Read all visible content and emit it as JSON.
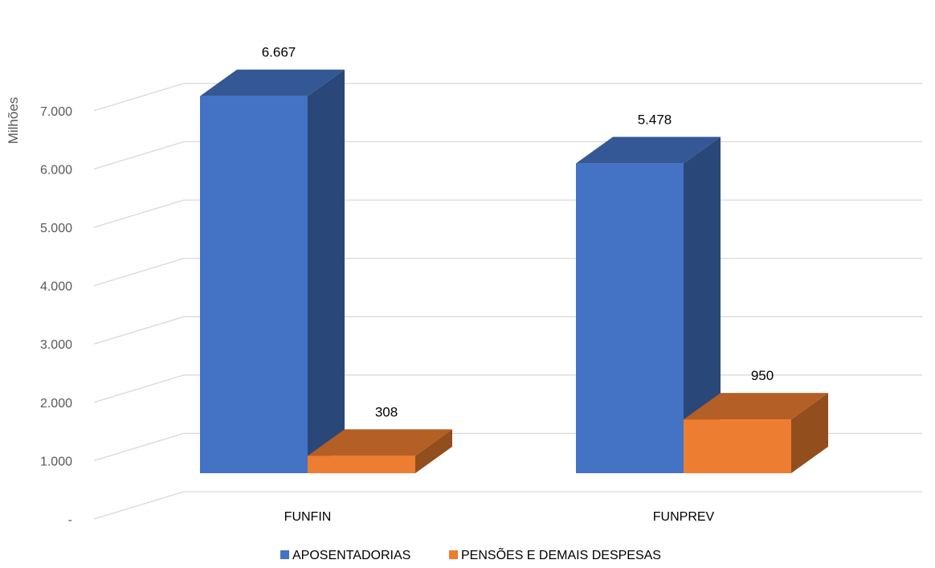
{
  "chart_data": {
    "type": "bar",
    "categories": [
      "FUNFIN",
      "FUNPREV"
    ],
    "series": [
      {
        "name": "APOSENTADORIAS",
        "values": [
          6667,
          5478
        ],
        "labels": [
          "6.667",
          "5.478"
        ],
        "color": "#4472C4"
      },
      {
        "name": "PENSÕES E DEMAIS DESPESAS",
        "values": [
          308,
          950
        ],
        "labels": [
          "308",
          "950"
        ],
        "color": "#ED7D31"
      }
    ],
    "ylabel": "Milhões",
    "ylim": [
      0,
      7000
    ],
    "yticks": [
      {
        "value": 0,
        "label": "-"
      },
      {
        "value": 1000,
        "label": "1.000"
      },
      {
        "value": 2000,
        "label": "2.000"
      },
      {
        "value": 3000,
        "label": "3.000"
      },
      {
        "value": 4000,
        "label": "4.000"
      },
      {
        "value": 5000,
        "label": "5.000"
      },
      {
        "value": 6000,
        "label": "6.000"
      },
      {
        "value": 7000,
        "label": "7.000"
      }
    ],
    "grid": true,
    "legend": "bottom",
    "style": "3d-clustered-column"
  }
}
